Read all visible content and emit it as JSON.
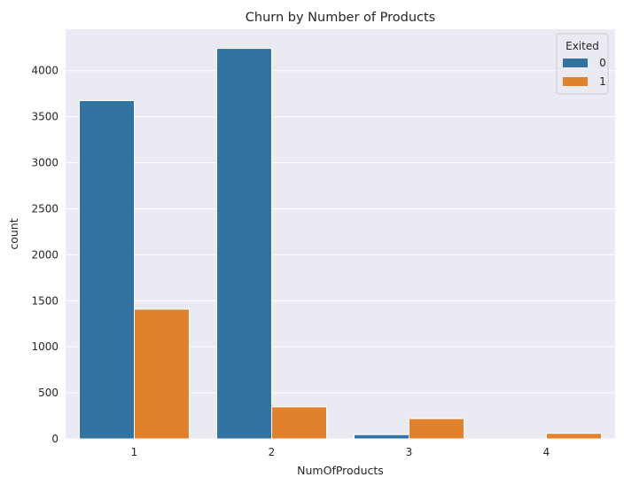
{
  "chart_data": {
    "type": "bar",
    "title": "Churn by Number of Products",
    "xlabel": "NumOfProducts",
    "ylabel": "count",
    "categories": [
      "1",
      "2",
      "3",
      "4"
    ],
    "series": [
      {
        "name": "0",
        "values": [
          3675,
          4242,
          46,
          0
        ],
        "color": "#3274a1"
      },
      {
        "name": "1",
        "values": [
          1409,
          348,
          220,
          60
        ],
        "color": "#e1812c"
      }
    ],
    "ylim": [
      0,
      4450
    ],
    "yticks": [
      0,
      500,
      1000,
      1500,
      2000,
      2500,
      3000,
      3500,
      4000
    ],
    "legend": {
      "title": "Exited",
      "placement": "top-right"
    },
    "grid": true,
    "background": "#eaeaf2"
  }
}
